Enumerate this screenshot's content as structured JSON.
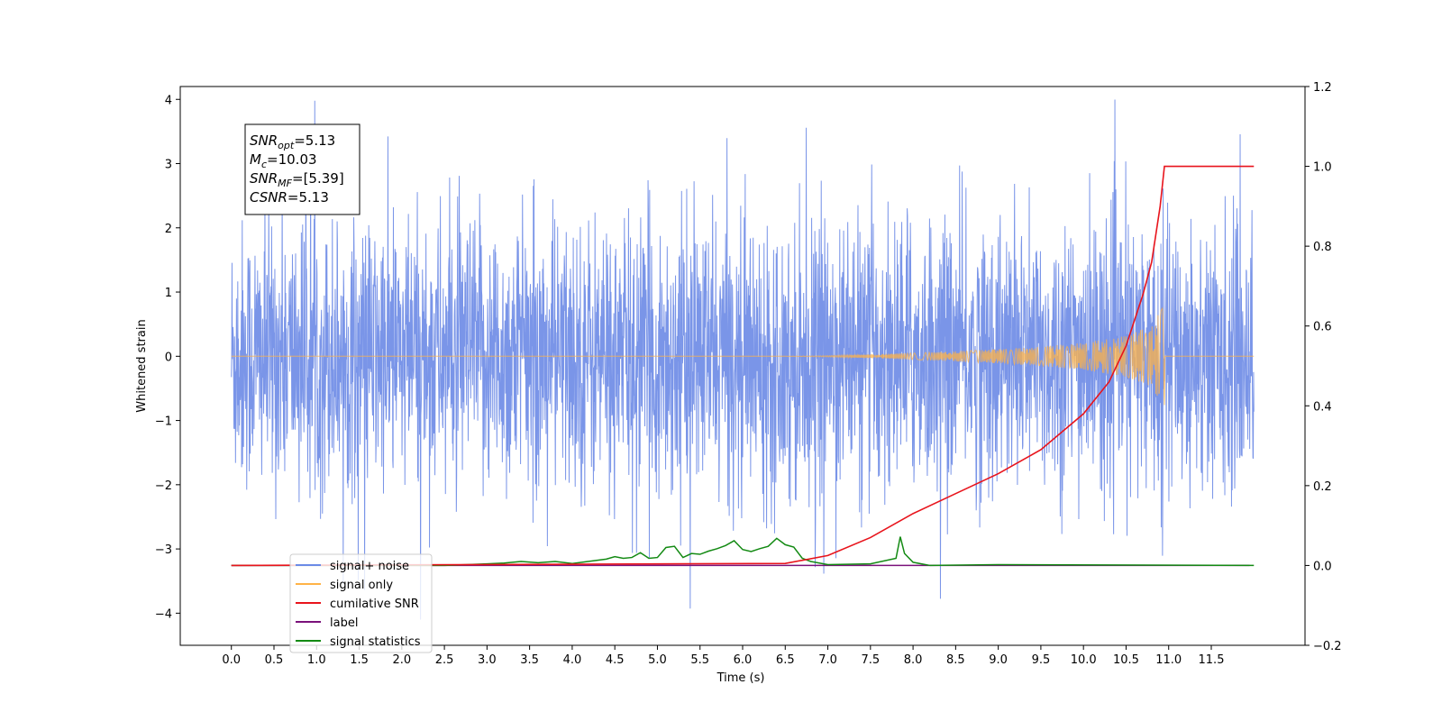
{
  "chart_data": {
    "type": "line",
    "xlabel": "Time (s)",
    "ylabel": "Whitened strain",
    "xlim": [
      -0.6,
      12.6
    ],
    "ylim": [
      -4.5,
      4.2
    ],
    "y2lim": [
      -0.2,
      1.2
    ],
    "x_ticks": [
      "0.0",
      "0.5",
      "1.0",
      "1.5",
      "2.0",
      "2.5",
      "3.0",
      "3.5",
      "4.0",
      "4.5",
      "5.0",
      "5.5",
      "6.0",
      "6.5",
      "7.0",
      "7.5",
      "8.0",
      "8.5",
      "9.0",
      "9.5",
      "10.0",
      "10.5",
      "11.0",
      "11.5"
    ],
    "y_ticks": [
      "4",
      "3",
      "2",
      "1",
      "0",
      "−1",
      "−2",
      "−3",
      "−4"
    ],
    "y2_ticks": [
      "1.2",
      "1.0",
      "0.8",
      "0.6",
      "0.4",
      "0.2",
      "0.0",
      "−0.2"
    ],
    "noise": {
      "x_start": 0.0,
      "x_end": 12.0,
      "envelope": 1.9,
      "max_abs_peak": 4.1,
      "color": "#6b8ae6"
    },
    "signal": {
      "merger_time": 10.95,
      "envelope_x": [
        6.5,
        7.0,
        7.5,
        8.0,
        8.5,
        9.0,
        9.5,
        10.0,
        10.5,
        10.8,
        10.95
      ],
      "envelope_y": [
        0.0,
        0.01,
        0.03,
        0.05,
        0.08,
        0.11,
        0.15,
        0.21,
        0.32,
        0.48,
        0.8
      ],
      "color": "#ffb347"
    },
    "cumulative_snr": {
      "x": [
        0.0,
        6.5,
        7.0,
        7.5,
        8.0,
        8.5,
        9.0,
        9.5,
        10.0,
        10.3,
        10.5,
        10.7,
        10.8,
        10.9,
        10.95,
        11.0,
        12.0
      ],
      "y": [
        0.0,
        0.005,
        0.025,
        0.07,
        0.13,
        0.18,
        0.23,
        0.29,
        0.38,
        0.46,
        0.55,
        0.68,
        0.76,
        0.9,
        1.0,
        1.0,
        1.0
      ],
      "color": "#e8141c"
    },
    "label": {
      "x": [
        0.0,
        11.95
      ],
      "y": [
        0.0,
        0.0
      ],
      "color": "#7a117a"
    },
    "signal_statistics": {
      "x": [
        0.0,
        2.5,
        3.0,
        3.2,
        3.4,
        3.6,
        3.8,
        4.0,
        4.4,
        4.5,
        4.6,
        4.7,
        4.8,
        4.9,
        5.0,
        5.1,
        5.2,
        5.3,
        5.4,
        5.5,
        5.6,
        5.7,
        5.8,
        5.9,
        6.0,
        6.1,
        6.2,
        6.3,
        6.4,
        6.5,
        6.6,
        6.7,
        6.8,
        7.0,
        7.5,
        7.8,
        7.85,
        7.9,
        8.0,
        8.2,
        9.0,
        12.0
      ],
      "y": [
        0.0,
        0.0,
        0.004,
        0.006,
        0.01,
        0.007,
        0.01,
        0.005,
        0.016,
        0.022,
        0.018,
        0.02,
        0.032,
        0.018,
        0.02,
        0.045,
        0.048,
        0.02,
        0.03,
        0.028,
        0.036,
        0.042,
        0.05,
        0.062,
        0.04,
        0.035,
        0.042,
        0.048,
        0.068,
        0.052,
        0.046,
        0.018,
        0.01,
        0.002,
        0.004,
        0.018,
        0.072,
        0.03,
        0.008,
        0.0,
        0.002,
        0.0
      ],
      "color": "#138a13"
    },
    "legend": {
      "placement": "lower-left",
      "entries": [
        {
          "name": "signal+ noise",
          "color": "#6b8ae6"
        },
        {
          "name": "signal only",
          "color": "#ffb347"
        },
        {
          "name": "cumilative SNR",
          "color": "#e8141c"
        },
        {
          "name": "label",
          "color": "#7a117a"
        },
        {
          "name": "signal statistics",
          "color": "#138a13"
        }
      ]
    },
    "info_box": {
      "lines": [
        {
          "base": "SNR",
          "sub": "opt",
          "rest": "=5.13"
        },
        {
          "base": "M",
          "sub": "c",
          "rest": "=10.03"
        },
        {
          "base": "SNR",
          "sub": "MF",
          "rest": "=[5.39]"
        },
        {
          "base": "CSNR",
          "sub": "",
          "rest": "=5.13"
        }
      ]
    }
  }
}
